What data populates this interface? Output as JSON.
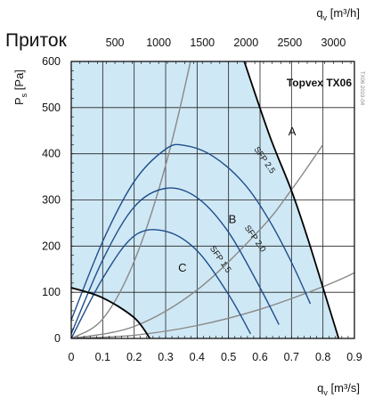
{
  "page_title": "Приток",
  "model": "Topvex TX06",
  "side_note": "TX06 2019-04",
  "colors": {
    "area_fill": "#cfe8f5",
    "grid": "#222222",
    "fan_curve": "#1f4e8c",
    "system_curve": "#888888",
    "limit": "#000000"
  },
  "chart_data": {
    "type": "line",
    "title": "Topvex TX06",
    "xlabel_base": "q",
    "xlabel_sub": "v",
    "xlabel_unit": " [m³/s]",
    "x2label_base": "q",
    "x2label_sub": "v",
    "x2label_unit": " [m³/h]",
    "ylabel_base": "P",
    "ylabel_sub": "s",
    "ylabel_unit": " [Pa]",
    "xlim": [
      0,
      0.9
    ],
    "ylim": [
      0,
      600
    ],
    "x2lim": [
      0,
      3240
    ],
    "xticks": [
      "0",
      "0.1",
      "0.2",
      "0.3",
      "0.4",
      "0.5",
      "0.6",
      "0.7",
      "0.8",
      "0.9"
    ],
    "x2ticks": [
      "500",
      "1000",
      "1500",
      "2000",
      "2500",
      "3000"
    ],
    "yticks": [
      "0",
      "100",
      "200",
      "300",
      "400",
      "500",
      "600"
    ],
    "grid": true,
    "operating_area": [
      [
        0,
        110
      ],
      [
        0.1,
        88
      ],
      [
        0.2,
        45
      ],
      [
        0.25,
        0
      ],
      [
        0.85,
        0
      ],
      [
        0.8,
        110
      ],
      [
        0.75,
        220
      ],
      [
        0.7,
        320
      ],
      [
        0.63,
        440
      ],
      [
        0.55,
        600
      ],
      [
        0,
        600
      ]
    ],
    "upper_limit": {
      "x": [
        0.55,
        0.63,
        0.7,
        0.75,
        0.8,
        0.85
      ],
      "y": [
        600,
        440,
        320,
        220,
        110,
        0
      ]
    },
    "lower_limit": {
      "x": [
        0,
        0.1,
        0.2,
        0.25
      ],
      "y": [
        110,
        88,
        45,
        0
      ]
    },
    "system_curves": [
      {
        "name": "A",
        "x": [
          0,
          0.1,
          0.2,
          0.3,
          0.4,
          0.47
        ],
        "y": [
          0,
          42,
          167,
          375,
          666,
          920
        ]
      },
      {
        "name": "B",
        "x": [
          0,
          0.2,
          0.4,
          0.6,
          0.7,
          0.8
        ],
        "y": [
          0,
          26,
          105,
          236,
          322,
          420
        ]
      },
      {
        "name": "C",
        "x": [
          0,
          0.2,
          0.4,
          0.6,
          0.8,
          0.9
        ],
        "y": [
          0,
          7,
          28,
          63,
          112,
          142
        ]
      }
    ],
    "fan_curves": [
      {
        "name": "SFP 2.5",
        "x": [
          0,
          0.1,
          0.2,
          0.3,
          0.36,
          0.45,
          0.55,
          0.63,
          0.7,
          0.76
        ],
        "y": [
          40,
          210,
          340,
          410,
          418,
          395,
          335,
          255,
          165,
          75
        ]
      },
      {
        "name": "SFP 2.0",
        "x": [
          0,
          0.1,
          0.2,
          0.3,
          0.4,
          0.5,
          0.6,
          0.66
        ],
        "y": [
          10,
          170,
          285,
          325,
          305,
          230,
          110,
          30
        ]
      },
      {
        "name": "SFP 1.5",
        "x": [
          0,
          0.1,
          0.2,
          0.3,
          0.4,
          0.5,
          0.57
        ],
        "y": [
          0,
          130,
          222,
          232,
          190,
          95,
          10
        ]
      }
    ],
    "annotations": [
      {
        "text": "A",
        "x": 0.69,
        "y": 440
      },
      {
        "text": "B",
        "x": 0.5,
        "y": 250
      },
      {
        "text": "C",
        "x": 0.34,
        "y": 145
      }
    ],
    "sfp_labels": [
      {
        "text": "SFP 2.5",
        "x": 0.58,
        "y": 410,
        "angle": 55
      },
      {
        "text": "SFP 2.0",
        "x": 0.55,
        "y": 240,
        "angle": 55
      },
      {
        "text": "SFP 1.5",
        "x": 0.44,
        "y": 195,
        "angle": 55
      }
    ]
  }
}
